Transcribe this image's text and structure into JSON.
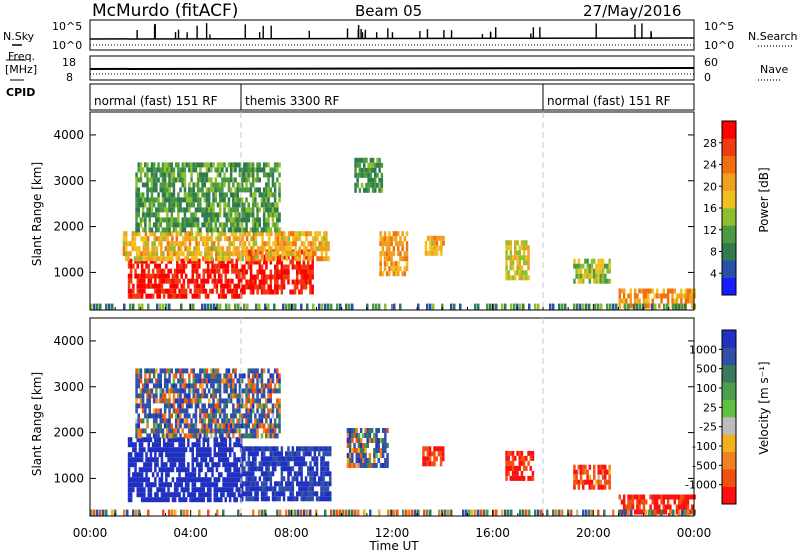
{
  "header": {
    "station": "McMurdo (fitACF)",
    "beam": "Beam 05",
    "date": "27/May/2016"
  },
  "top_panel": {
    "left_label_1": "N.Sky",
    "left_label_2": "Freq.",
    "left_label_3": "[MHz]",
    "left_label_4": "CPID",
    "right_label_1": "N.Search",
    "right_label_2": "Nave",
    "nsky_ticks": [
      "10^5",
      "10^0"
    ],
    "freq_ticks": [
      "18",
      "8"
    ],
    "nsearch_ticks": [
      "10^5",
      "10^0"
    ],
    "nave_ticks": [
      "60",
      "0"
    ],
    "cpid_segments": [
      {
        "label": "normal (fast) 151 RF",
        "start_h": 0,
        "end_h": 6
      },
      {
        "label": "themis 3300 RF",
        "start_h": 6,
        "end_h": 18
      },
      {
        "label": "normal (fast) 151 RF",
        "start_h": 18,
        "end_h": 24
      }
    ]
  },
  "x_axis": {
    "ticks": [
      "00:00",
      "04:00",
      "08:00",
      "12:00",
      "16:00",
      "20:00",
      "00:00"
    ],
    "label": "Time UT"
  },
  "panels": [
    {
      "ylabel": "Slant Range [km]",
      "yticks": [
        "1000",
        "2000",
        "3000",
        "4000"
      ],
      "colorbar_label": "Power [dB]",
      "colorbar_ticks": [
        "4",
        "8",
        "12",
        "16",
        "20",
        "24",
        "28"
      ],
      "colors": [
        "#1a1aff",
        "#2850a8",
        "#2f7a4f",
        "#4c9a3f",
        "#8fbf2f",
        "#f0c020",
        "#f0a020",
        "#f07010",
        "#f03a10",
        "#ff0000"
      ]
    },
    {
      "ylabel": "Slant Range [km]",
      "yticks": [
        "1000",
        "2000",
        "3000",
        "4000"
      ],
      "colorbar_label": "Velocity [m s⁻¹]",
      "colorbar_ticks": [
        "1000",
        "500",
        "100",
        "25",
        "-25",
        "-100",
        "-500",
        "-1000"
      ],
      "colors": [
        "#2030c0",
        "#3050a8",
        "#3a7a5a",
        "#4aa050",
        "#60c040",
        "#bcbcbc",
        "#f0b020",
        "#f08020",
        "#f05010",
        "#ff1010"
      ]
    }
  ],
  "chart_data": [
    {
      "type": "heatmap",
      "title": "McMurdo (fitACF)",
      "subtitle": "Beam 05",
      "xlabel": "Time UT",
      "ylabel": "Slant Range [km]",
      "colorbar": "Power [dB]",
      "xlim_hours": [
        0,
        24
      ],
      "ylim_km": [
        180,
        4500
      ],
      "clim": [
        0,
        30
      ],
      "regions": [
        {
          "t0": 1.5,
          "t1": 6.0,
          "r0": 500,
          "r1": 1300,
          "value": 28
        },
        {
          "t0": 6.0,
          "t1": 8.8,
          "r0": 600,
          "r1": 1500,
          "value": 28
        },
        {
          "t0": 1.3,
          "t1": 9.5,
          "r0": 1300,
          "r1": 1900,
          "value": 18
        },
        {
          "t0": 1.8,
          "t1": 7.5,
          "r0": 1900,
          "r1": 3400,
          "value": 10
        },
        {
          "t0": 11.5,
          "t1": 12.6,
          "r0": 1000,
          "r1": 1900,
          "value": 20
        },
        {
          "t0": 10.5,
          "t1": 11.6,
          "r0": 2800,
          "r1": 3500,
          "value": 10
        },
        {
          "t0": 13.3,
          "t1": 14.0,
          "r0": 1400,
          "r1": 1800,
          "value": 18
        },
        {
          "t0": 16.5,
          "t1": 17.4,
          "r0": 900,
          "r1": 1700,
          "value": 16
        },
        {
          "t0": 19.2,
          "t1": 20.6,
          "r0": 800,
          "r1": 1300,
          "value": 14
        },
        {
          "t0": 21.0,
          "t1": 24.0,
          "r0": 300,
          "r1": 650,
          "value": 20
        }
      ]
    },
    {
      "type": "heatmap",
      "title": "McMurdo (fitACF)",
      "subtitle": "Beam 05",
      "xlabel": "Time UT",
      "ylabel": "Slant Range [km]",
      "colorbar": "Velocity [m s⁻¹]",
      "xlim_hours": [
        0,
        24
      ],
      "ylim_km": [
        180,
        4500
      ],
      "clim": [
        -1000,
        1000
      ],
      "regions": [
        {
          "t0": 1.5,
          "t1": 6.0,
          "r0": 500,
          "r1": 1900,
          "value": 500
        },
        {
          "t0": 6.0,
          "t1": 9.5,
          "r0": 600,
          "r1": 1700,
          "value": 300
        },
        {
          "t0": 1.8,
          "t1": 7.5,
          "r0": 1900,
          "r1": 3400,
          "value": 80
        },
        {
          "t0": 10.2,
          "t1": 11.8,
          "r0": 1300,
          "r1": 2100,
          "value": 100
        },
        {
          "t0": 13.2,
          "t1": 14.0,
          "r0": 1300,
          "r1": 1700,
          "value": -300
        },
        {
          "t0": 16.5,
          "t1": 17.6,
          "r0": 1000,
          "r1": 1600,
          "value": -300
        },
        {
          "t0": 19.2,
          "t1": 20.6,
          "r0": 800,
          "r1": 1300,
          "value": -200
        },
        {
          "t0": 21.0,
          "t1": 24.0,
          "r0": 300,
          "r1": 650,
          "value": -300
        }
      ]
    }
  ]
}
